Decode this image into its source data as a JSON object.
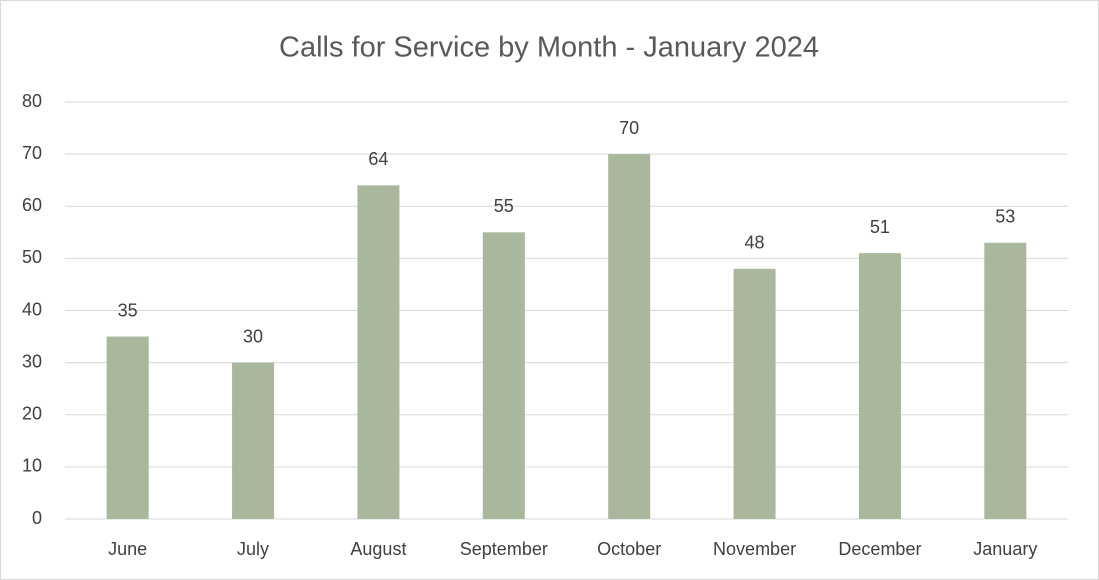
{
  "chart_data": {
    "type": "bar",
    "title": "Calls for Service by Month - January 2024",
    "categories": [
      "June",
      "July",
      "August",
      "September",
      "October",
      "November",
      "December",
      "January"
    ],
    "values": [
      35,
      30,
      64,
      55,
      70,
      48,
      51,
      53
    ],
    "color": "#a9b79c",
    "ylim": [
      0,
      80
    ],
    "yticks": [
      0,
      10,
      20,
      30,
      40,
      50,
      60,
      70,
      80
    ],
    "grid": true,
    "data_labels": true
  }
}
